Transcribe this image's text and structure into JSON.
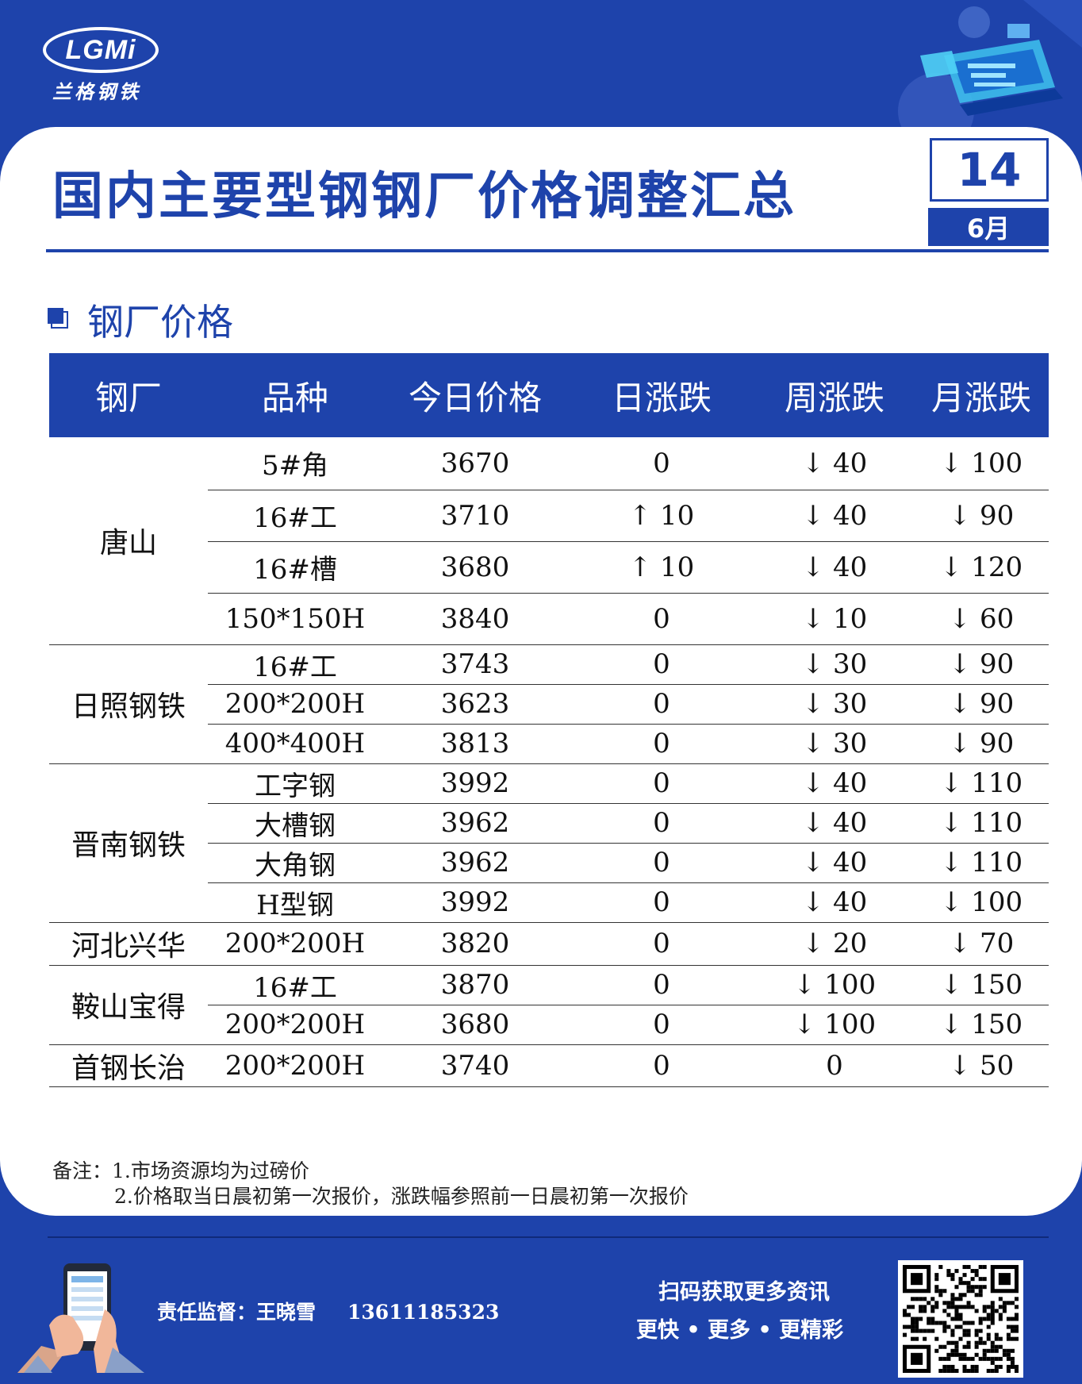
{
  "brand": {
    "logo_text": "LGMi",
    "logo_subtitle": "兰格钢铁"
  },
  "header": {
    "title": "国内主要型钢钢厂价格调整汇总",
    "day": "14",
    "month": "6月"
  },
  "section": {
    "title": "钢厂价格"
  },
  "table": {
    "columns": [
      "钢厂",
      "品种",
      "今日价格",
      "日涨跌",
      "周涨跌",
      "月涨跌"
    ],
    "groups": [
      {
        "mill": "唐山",
        "rows": [
          {
            "product": "5#角",
            "price": "3670",
            "day": "0",
            "week": "↓ 40",
            "month": "↓ 100"
          },
          {
            "product": "16#工",
            "price": "3710",
            "day": "↑ 10",
            "week": "↓ 40",
            "month": "↓ 90"
          },
          {
            "product": "16#槽",
            "price": "3680",
            "day": "↑ 10",
            "week": "↓ 40",
            "month": "↓ 120"
          },
          {
            "product": "150*150H",
            "price": "3840",
            "day": "0",
            "week": "↓ 10",
            "month": "↓ 60"
          }
        ]
      },
      {
        "mill": "日照钢铁",
        "rows": [
          {
            "product": "16#工",
            "price": "3743",
            "day": "0",
            "week": "↓ 30",
            "month": "↓ 90"
          },
          {
            "product": "200*200H",
            "price": "3623",
            "day": "0",
            "week": "↓ 30",
            "month": "↓ 90"
          },
          {
            "product": "400*400H",
            "price": "3813",
            "day": "0",
            "week": "↓ 30",
            "month": "↓ 90"
          }
        ]
      },
      {
        "mill": "晋南钢铁",
        "rows": [
          {
            "product": "工字钢",
            "price": "3992",
            "day": "0",
            "week": "↓ 40",
            "month": "↓ 110"
          },
          {
            "product": "大槽钢",
            "price": "3962",
            "day": "0",
            "week": "↓ 40",
            "month": "↓ 110"
          },
          {
            "product": "大角钢",
            "price": "3962",
            "day": "0",
            "week": "↓ 40",
            "month": "↓ 110"
          },
          {
            "product": "H型钢",
            "price": "3992",
            "day": "0",
            "week": "↓ 40",
            "month": "↓ 100"
          }
        ]
      },
      {
        "mill": "河北兴华",
        "rows": [
          {
            "product": "200*200H",
            "price": "3820",
            "day": "0",
            "week": "↓ 20",
            "month": "↓ 70"
          }
        ]
      },
      {
        "mill": "鞍山宝得",
        "rows": [
          {
            "product": "16#工",
            "price": "3870",
            "day": "0",
            "week": "↓ 100",
            "month": "↓ 150"
          },
          {
            "product": "200*200H",
            "price": "3680",
            "day": "0",
            "week": "↓ 100",
            "month": "↓ 150"
          }
        ]
      },
      {
        "mill": "首钢长治",
        "rows": [
          {
            "product": "200*200H",
            "price": "3740",
            "day": "0",
            "week": "0",
            "month": "↓ 50"
          }
        ]
      }
    ]
  },
  "notes": {
    "line1": "备注：1.市场资源均为过磅价",
    "line2": "2.价格取当日晨初第一次报价，涨跌幅参照前一日晨初第一次报价"
  },
  "footer": {
    "supervisor": "责任监督：王晓雪",
    "phone": "13611185323",
    "scan_line1": "扫码获取更多资讯",
    "scan_line2": "更快 • 更多 • 更精彩"
  },
  "colors": {
    "brand_blue": "#1e43ab",
    "up_red": "#e01010",
    "down_green": "#1a9a3a"
  }
}
